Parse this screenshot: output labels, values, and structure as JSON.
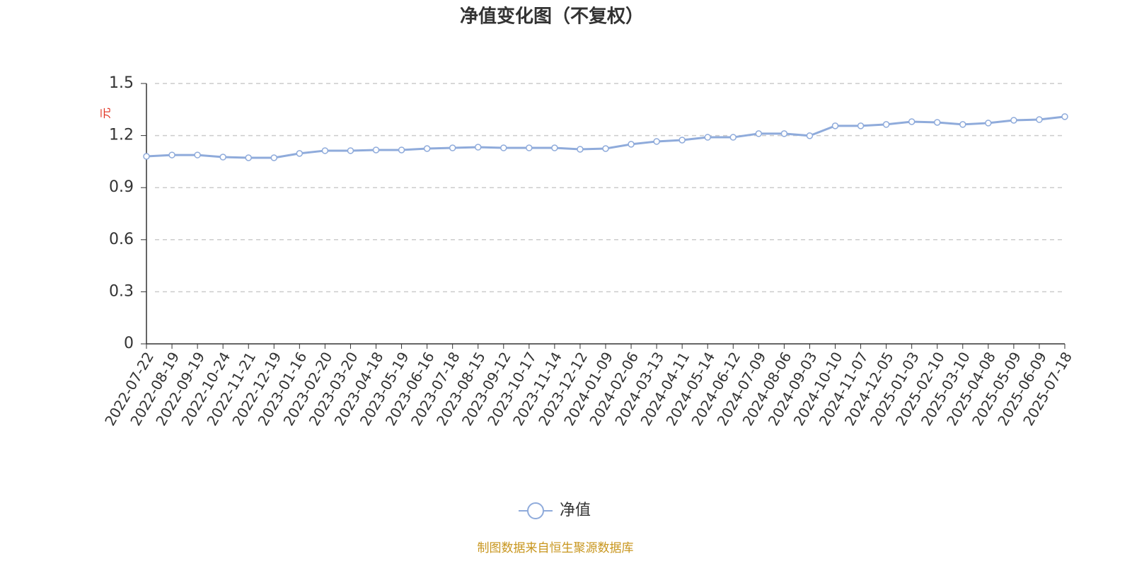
{
  "chart_data": {
    "type": "line",
    "title": "净值变化图（不复权）",
    "y_label": "元",
    "source": "制图数据来自恒生聚源数据库",
    "categories": [
      "2022-07-22",
      "2022-08-19",
      "2022-09-19",
      "2022-10-24",
      "2022-11-21",
      "2022-12-19",
      "2023-01-16",
      "2023-02-20",
      "2023-03-20",
      "2023-04-18",
      "2023-05-19",
      "2023-06-16",
      "2023-07-18",
      "2023-08-15",
      "2023-09-12",
      "2023-10-17",
      "2023-11-14",
      "2023-12-12",
      "2024-01-09",
      "2024-02-06",
      "2024-03-13",
      "2024-04-11",
      "2024-05-14",
      "2024-06-12",
      "2024-07-09",
      "2024-08-06",
      "2024-09-03",
      "2024-10-10",
      "2024-11-07",
      "2024-12-05",
      "2025-01-03",
      "2025-02-10",
      "2025-03-10",
      "2025-04-08",
      "2025-05-09",
      "2025-06-09",
      "2025-07-18"
    ],
    "series": [
      {
        "name": "净值",
        "color": "#8fabdb",
        "values": [
          1.08,
          1.088,
          1.088,
          1.076,
          1.072,
          1.072,
          1.097,
          1.113,
          1.113,
          1.117,
          1.117,
          1.125,
          1.129,
          1.133,
          1.129,
          1.129,
          1.129,
          1.121,
          1.125,
          1.15,
          1.166,
          1.174,
          1.19,
          1.19,
          1.211,
          1.211,
          1.199,
          1.256,
          1.256,
          1.264,
          1.28,
          1.276,
          1.264,
          1.272,
          1.288,
          1.292,
          1.309
        ]
      }
    ],
    "ylim": [
      0,
      1.5
    ],
    "yticks": [
      0,
      0.3,
      0.6,
      0.9,
      1.2,
      1.5
    ],
    "grid": true,
    "legend": "bottom"
  }
}
